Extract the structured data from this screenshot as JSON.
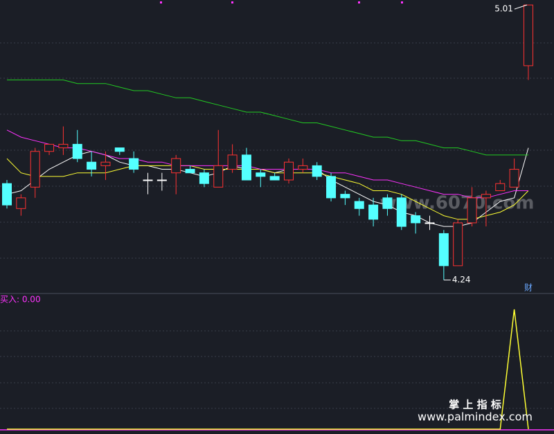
{
  "chart_data": [
    {
      "type": "candlestick",
      "categories": [
        null,
        null,
        null,
        null,
        null,
        null,
        null,
        null,
        null,
        null,
        null,
        null,
        null,
        null,
        null,
        null,
        null,
        null,
        null,
        null,
        null,
        null,
        null,
        null,
        null,
        null,
        null,
        null,
        null,
        null,
        null,
        null,
        null,
        null,
        null,
        null,
        null,
        null
      ],
      "open": [
        4.51,
        4.44,
        4.5,
        4.6,
        4.61,
        4.62,
        4.57,
        4.56,
        4.61,
        4.58,
        4.52,
        4.52,
        4.54,
        4.55,
        4.54,
        4.5,
        4.55,
        4.59,
        4.54,
        4.53,
        4.52,
        4.55,
        4.56,
        4.53,
        4.48,
        4.46,
        4.45,
        4.47,
        4.47,
        4.42,
        4.4,
        4.37,
        4.28,
        4.4,
        4.47,
        4.49,
        4.5,
        4.84
      ],
      "close": [
        4.45,
        4.47,
        4.6,
        4.62,
        4.62,
        4.58,
        4.55,
        4.57,
        4.6,
        4.55,
        4.52,
        4.52,
        4.58,
        4.54,
        4.51,
        4.56,
        4.59,
        4.52,
        4.53,
        4.52,
        4.57,
        4.56,
        4.53,
        4.47,
        4.47,
        4.44,
        4.41,
        4.44,
        4.39,
        4.4,
        4.4,
        4.28,
        4.4,
        4.47,
        4.48,
        4.51,
        4.55,
        5.01
      ],
      "high": [
        4.52,
        4.48,
        4.61,
        4.62,
        4.67,
        4.66,
        4.6,
        4.6,
        4.61,
        4.6,
        4.54,
        4.54,
        4.59,
        4.56,
        4.55,
        4.66,
        4.62,
        4.61,
        4.55,
        4.54,
        4.58,
        4.58,
        4.57,
        4.54,
        4.49,
        4.47,
        4.47,
        4.48,
        4.48,
        4.43,
        4.42,
        4.38,
        4.41,
        4.5,
        4.49,
        4.52,
        4.58,
        5.01
      ],
      "low": [
        4.44,
        4.42,
        4.47,
        4.59,
        4.59,
        4.57,
        4.53,
        4.52,
        4.59,
        4.54,
        4.48,
        4.49,
        4.48,
        4.54,
        4.5,
        4.5,
        4.54,
        4.52,
        4.5,
        4.52,
        4.51,
        4.54,
        4.52,
        4.46,
        4.45,
        4.42,
        4.39,
        4.42,
        4.38,
        4.37,
        4.38,
        4.24,
        4.28,
        4.39,
        4.39,
        4.49,
        4.5,
        4.8
      ],
      "up_color": "#ff3232",
      "down_color": "#54ffff",
      "flat_color": "#ffffff",
      "lines": [
        {
          "color": "#ffffff",
          "values": [
            4.48,
            4.49,
            4.52,
            4.55,
            4.57,
            4.59,
            4.6,
            4.59,
            4.57,
            4.56,
            4.56,
            4.55,
            4.55,
            4.54,
            4.53,
            4.54,
            4.56,
            4.55,
            4.55,
            4.54,
            4.55,
            4.55,
            4.55,
            4.52,
            4.5,
            4.48,
            4.46,
            4.45,
            4.43,
            4.42,
            4.4,
            4.39,
            4.39,
            4.4,
            4.43,
            4.46,
            4.47,
            4.61
          ]
        },
        {
          "color": "#ffff33",
          "values": [
            4.58,
            4.54,
            4.53,
            4.53,
            4.53,
            4.54,
            4.54,
            4.54,
            4.55,
            4.56,
            4.56,
            4.56,
            4.56,
            4.56,
            4.55,
            4.55,
            4.55,
            4.55,
            4.55,
            4.54,
            4.54,
            4.54,
            4.54,
            4.53,
            4.52,
            4.51,
            4.49,
            4.49,
            4.48,
            4.46,
            4.44,
            4.42,
            4.41,
            4.41,
            4.42,
            4.43,
            4.45,
            4.49
          ]
        },
        {
          "color": "#ff33ff",
          "values": [
            4.66,
            4.64,
            4.63,
            4.62,
            4.61,
            4.61,
            4.6,
            4.59,
            4.58,
            4.58,
            4.57,
            4.57,
            4.56,
            4.56,
            4.56,
            4.56,
            4.56,
            4.56,
            4.55,
            4.55,
            4.55,
            4.55,
            4.55,
            4.54,
            4.54,
            4.53,
            4.52,
            4.52,
            4.51,
            4.5,
            4.49,
            4.48,
            4.48,
            4.47,
            4.47,
            4.48,
            4.49,
            4.49
          ]
        },
        {
          "color": "#22cc22",
          "values": [
            4.8,
            4.8,
            4.8,
            4.8,
            4.8,
            4.79,
            4.79,
            4.79,
            4.78,
            4.77,
            4.77,
            4.76,
            4.75,
            4.75,
            4.74,
            4.73,
            4.72,
            4.71,
            4.71,
            4.7,
            4.69,
            4.68,
            4.68,
            4.67,
            4.66,
            4.65,
            4.64,
            4.64,
            4.63,
            4.63,
            4.62,
            4.61,
            4.61,
            4.6,
            4.59,
            4.59,
            4.59,
            4.59
          ]
        }
      ],
      "ylim": [
        4.21,
        5.02
      ],
      "tag": "财"
    },
    {
      "type": "line",
      "title": "买入: 0.00",
      "title_color": "#ff33ff",
      "color": "#ffff33",
      "values": [
        0,
        0,
        0,
        0,
        0,
        0,
        0,
        0,
        0,
        0,
        0,
        0,
        0,
        0,
        0,
        0,
        0,
        0,
        0,
        0,
        0,
        0,
        0,
        0,
        0,
        0,
        0,
        0,
        0,
        0,
        0,
        0,
        0,
        0,
        0,
        0,
        1,
        0
      ],
      "ylim": [
        0,
        1
      ]
    }
  ],
  "watermarks": [
    "www.6070.com",
    "掌 上 指 标",
    "www.palmindex.com"
  ]
}
